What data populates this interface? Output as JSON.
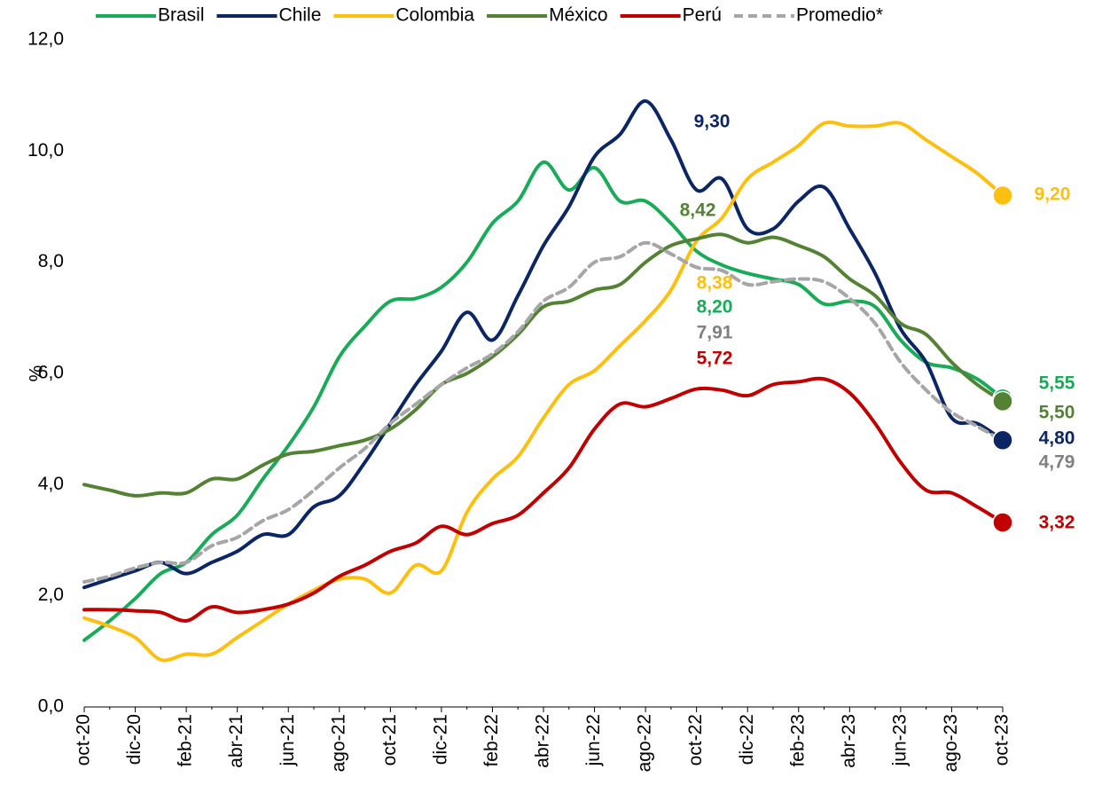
{
  "chart_data": {
    "type": "line",
    "y_label": "%",
    "legend": "top",
    "categories": [
      "oct-20",
      null,
      "dic-20",
      null,
      "feb-21",
      null,
      "abr-21",
      null,
      "jun-21",
      null,
      "ago-21",
      null,
      "oct-21",
      null,
      "dic-21",
      null,
      "feb-22",
      null,
      "abr-22",
      null,
      "jun-22",
      null,
      "ago-22",
      null,
      "oct-22",
      null,
      "dic-22",
      null,
      "feb-23",
      null,
      "abr-23",
      null,
      "jun-23",
      null,
      "ago-23",
      null,
      "oct-23"
    ],
    "series": [
      {
        "name": "Brasil",
        "color": "#1aab58",
        "values": [
          1.2,
          1.55,
          1.95,
          2.4,
          2.6,
          3.1,
          3.45,
          4.1,
          4.7,
          5.4,
          6.3,
          6.85,
          7.3,
          7.35,
          7.55,
          8.0,
          8.7,
          9.1,
          9.8,
          9.3,
          9.7,
          9.1,
          9.1,
          8.7,
          8.2,
          7.95,
          7.8,
          7.7,
          7.6,
          7.25,
          7.3,
          7.2,
          6.6,
          6.2,
          6.1,
          5.9,
          5.55
        ]
      },
      {
        "name": "Chile",
        "color": "#0b2663",
        "values": [
          2.15,
          2.3,
          2.45,
          2.6,
          2.4,
          2.6,
          2.8,
          3.1,
          3.1,
          3.6,
          3.8,
          4.4,
          5.1,
          5.8,
          6.4,
          7.1,
          6.6,
          7.4,
          8.3,
          9.0,
          9.9,
          10.3,
          10.9,
          10.2,
          9.3,
          9.5,
          8.6,
          8.6,
          9.1,
          9.35,
          8.6,
          7.8,
          6.8,
          6.2,
          5.2,
          5.1,
          4.8
        ]
      },
      {
        "name": "Colombia",
        "color": "#fdc010",
        "values": [
          1.6,
          1.45,
          1.25,
          0.85,
          0.95,
          0.95,
          1.25,
          1.55,
          1.85,
          2.1,
          2.3,
          2.3,
          2.05,
          2.55,
          2.45,
          3.5,
          4.1,
          4.5,
          5.2,
          5.8,
          6.05,
          6.5,
          6.95,
          7.5,
          8.38,
          8.8,
          9.5,
          9.8,
          10.1,
          10.5,
          10.45,
          10.45,
          10.5,
          10.2,
          9.9,
          9.6,
          9.2
        ]
      },
      {
        "name": "México",
        "color": "#548235",
        "values": [
          4.0,
          3.9,
          3.8,
          3.85,
          3.85,
          4.1,
          4.1,
          4.35,
          4.55,
          4.6,
          4.7,
          4.8,
          5.0,
          5.35,
          5.8,
          6.0,
          6.3,
          6.7,
          7.2,
          7.3,
          7.5,
          7.6,
          8.0,
          8.3,
          8.42,
          8.5,
          8.35,
          8.45,
          8.3,
          8.1,
          7.7,
          7.4,
          6.9,
          6.7,
          6.2,
          5.8,
          5.5
        ]
      },
      {
        "name": "Perú",
        "color": "#c00000",
        "values": [
          1.75,
          1.75,
          1.73,
          1.7,
          1.55,
          1.8,
          1.7,
          1.75,
          1.85,
          2.05,
          2.35,
          2.55,
          2.8,
          2.95,
          3.25,
          3.1,
          3.3,
          3.45,
          3.85,
          4.3,
          5.0,
          5.45,
          5.4,
          5.55,
          5.72,
          5.7,
          5.6,
          5.8,
          5.85,
          5.9,
          5.65,
          5.1,
          4.4,
          3.9,
          3.85,
          3.6,
          3.32
        ]
      },
      {
        "name": "Promedio*",
        "color": "#a6a6a6",
        "dashed": true,
        "values": [
          2.25,
          2.35,
          2.5,
          2.6,
          2.6,
          2.9,
          3.05,
          3.35,
          3.55,
          3.9,
          4.3,
          4.65,
          5.1,
          5.45,
          5.8,
          6.1,
          6.35,
          6.75,
          7.3,
          7.55,
          8.0,
          8.1,
          8.35,
          8.15,
          7.91,
          7.85,
          7.6,
          7.65,
          7.7,
          7.65,
          7.35,
          6.9,
          6.2,
          5.7,
          5.3,
          5.05,
          4.79
        ]
      }
    ],
    "annotations": [
      {
        "text": "9,30",
        "color": "#0b2663"
      },
      {
        "text": "8,42",
        "color": "#548235"
      },
      {
        "text": "8,38",
        "color": "#fdc010"
      },
      {
        "text": "8,20",
        "color": "#1aab58"
      },
      {
        "text": "7,91",
        "color": "#808080"
      },
      {
        "text": "5,72",
        "color": "#c00000"
      },
      {
        "text": "9,20",
        "color": "#fdc010"
      },
      {
        "text": "5,55",
        "color": "#1aab58"
      },
      {
        "text": "5,50",
        "color": "#548235"
      },
      {
        "text": "4,80",
        "color": "#0b2663"
      },
      {
        "text": "4,79",
        "color": "#808080"
      },
      {
        "text": "3,32",
        "color": "#c00000"
      }
    ],
    "ylim": [
      0,
      12
    ],
    "yticks": [
      {
        "value": 0,
        "label": "0,0"
      },
      {
        "value": 2,
        "label": "2,0"
      },
      {
        "value": 4,
        "label": "4,0"
      },
      {
        "value": 6,
        "label": "6,0"
      },
      {
        "value": 8,
        "label": "8,0"
      },
      {
        "value": 10,
        "label": "10,0"
      },
      {
        "value": 12,
        "label": "12,0"
      }
    ],
    "grid": false
  }
}
